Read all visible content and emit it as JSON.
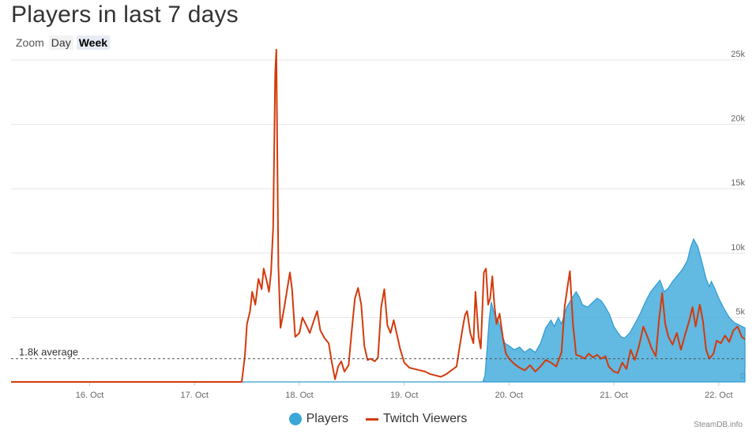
{
  "chart_data": {
    "type": "area",
    "title": "Players in last 7 days",
    "zoom": {
      "label": "Zoom",
      "options": [
        "Day",
        "Week"
      ],
      "selected": "Week"
    },
    "x_ticks": [
      "16. Oct",
      "17. Oct",
      "18. Oct",
      "19. Oct",
      "20. Oct",
      "21. Oct",
      "22. Oct"
    ],
    "xlim_days": [
      15.25,
      22.25
    ],
    "y_ticks": [
      "0",
      "5k",
      "10k",
      "15k",
      "20k",
      "25k"
    ],
    "ylim": [
      0,
      25000
    ],
    "average": {
      "value": 1800,
      "label": "1.8k average"
    },
    "grid": true,
    "legend_position": "bottom-center",
    "series": [
      {
        "name": "Players",
        "kind": "area",
        "color": "#3ba7d9",
        "points": [
          [
            15.25,
            0
          ],
          [
            19.75,
            0
          ],
          [
            19.77,
            500
          ],
          [
            19.79,
            2500
          ],
          [
            19.81,
            4800
          ],
          [
            19.83,
            6200
          ],
          [
            19.86,
            5300
          ],
          [
            19.9,
            4700
          ],
          [
            19.93,
            3800
          ],
          [
            19.96,
            3000
          ],
          [
            20.0,
            2800
          ],
          [
            20.05,
            2500
          ],
          [
            20.1,
            2700
          ],
          [
            20.15,
            2300
          ],
          [
            20.2,
            2600
          ],
          [
            20.25,
            2300
          ],
          [
            20.3,
            3000
          ],
          [
            20.35,
            4200
          ],
          [
            20.4,
            4800
          ],
          [
            20.43,
            4300
          ],
          [
            20.47,
            5000
          ],
          [
            20.5,
            4500
          ],
          [
            20.55,
            5800
          ],
          [
            20.6,
            6500
          ],
          [
            20.64,
            7000
          ],
          [
            20.67,
            6600
          ],
          [
            20.7,
            6000
          ],
          [
            20.75,
            5800
          ],
          [
            20.8,
            6200
          ],
          [
            20.84,
            6500
          ],
          [
            20.88,
            6300
          ],
          [
            20.92,
            5800
          ],
          [
            20.96,
            5200
          ],
          [
            21.0,
            4300
          ],
          [
            21.04,
            3800
          ],
          [
            21.07,
            3500
          ],
          [
            21.1,
            3400
          ],
          [
            21.15,
            3800
          ],
          [
            21.2,
            4500
          ],
          [
            21.25,
            5300
          ],
          [
            21.3,
            6200
          ],
          [
            21.35,
            7000
          ],
          [
            21.4,
            7500
          ],
          [
            21.44,
            7900
          ],
          [
            21.48,
            7000
          ],
          [
            21.52,
            7300
          ],
          [
            21.56,
            7800
          ],
          [
            21.6,
            8200
          ],
          [
            21.65,
            8700
          ],
          [
            21.7,
            9400
          ],
          [
            21.73,
            10400
          ],
          [
            21.76,
            11100
          ],
          [
            21.8,
            10500
          ],
          [
            21.84,
            9300
          ],
          [
            21.88,
            8000
          ],
          [
            21.91,
            7400
          ],
          [
            21.93,
            7800
          ],
          [
            21.96,
            7300
          ],
          [
            22.0,
            6500
          ],
          [
            22.05,
            5700
          ],
          [
            22.1,
            5000
          ],
          [
            22.15,
            4600
          ],
          [
            22.2,
            4400
          ],
          [
            22.25,
            4200
          ]
        ]
      },
      {
        "name": "Twitch Viewers",
        "kind": "line",
        "color": "#d33a0c",
        "points": [
          [
            15.25,
            0
          ],
          [
            17.45,
            0
          ],
          [
            17.48,
            2000
          ],
          [
            17.5,
            4500
          ],
          [
            17.53,
            5500
          ],
          [
            17.55,
            7000
          ],
          [
            17.58,
            6000
          ],
          [
            17.61,
            8000
          ],
          [
            17.64,
            7200
          ],
          [
            17.66,
            8800
          ],
          [
            17.69,
            7800
          ],
          [
            17.71,
            7000
          ],
          [
            17.73,
            8500
          ],
          [
            17.75,
            12000
          ],
          [
            17.77,
            24000
          ],
          [
            17.78,
            25800
          ],
          [
            17.8,
            9000
          ],
          [
            17.82,
            4200
          ],
          [
            17.85,
            5500
          ],
          [
            17.88,
            7000
          ],
          [
            17.91,
            8500
          ],
          [
            17.93,
            7200
          ],
          [
            17.96,
            3500
          ],
          [
            18.0,
            3800
          ],
          [
            18.03,
            5000
          ],
          [
            18.06,
            4500
          ],
          [
            18.1,
            3800
          ],
          [
            18.14,
            4800
          ],
          [
            18.17,
            5500
          ],
          [
            18.2,
            4000
          ],
          [
            18.24,
            3400
          ],
          [
            18.28,
            3000
          ],
          [
            18.31,
            1500
          ],
          [
            18.34,
            200
          ],
          [
            18.37,
            1200
          ],
          [
            18.4,
            1600
          ],
          [
            18.43,
            800
          ],
          [
            18.47,
            1300
          ],
          [
            18.5,
            4000
          ],
          [
            18.53,
            6500
          ],
          [
            18.56,
            7300
          ],
          [
            18.59,
            6000
          ],
          [
            18.62,
            2800
          ],
          [
            18.65,
            1700
          ],
          [
            18.68,
            1800
          ],
          [
            18.72,
            1600
          ],
          [
            18.75,
            1900
          ],
          [
            18.78,
            5800
          ],
          [
            18.81,
            7200
          ],
          [
            18.84,
            4400
          ],
          [
            18.87,
            3800
          ],
          [
            18.9,
            4800
          ],
          [
            18.93,
            3700
          ],
          [
            18.96,
            2600
          ],
          [
            19.0,
            1500
          ],
          [
            19.05,
            1100
          ],
          [
            19.1,
            1000
          ],
          [
            19.15,
            900
          ],
          [
            19.2,
            800
          ],
          [
            19.25,
            600
          ],
          [
            19.3,
            500
          ],
          [
            19.35,
            400
          ],
          [
            19.4,
            600
          ],
          [
            19.45,
            900
          ],
          [
            19.5,
            1200
          ],
          [
            19.53,
            2800
          ],
          [
            19.56,
            4300
          ],
          [
            19.58,
            5200
          ],
          [
            19.6,
            5500
          ],
          [
            19.63,
            3800
          ],
          [
            19.66,
            3000
          ],
          [
            19.68,
            7000
          ],
          [
            19.71,
            3500
          ],
          [
            19.73,
            2600
          ],
          [
            19.76,
            8500
          ],
          [
            19.78,
            8800
          ],
          [
            19.8,
            6000
          ],
          [
            19.82,
            6500
          ],
          [
            19.84,
            8200
          ],
          [
            19.86,
            6000
          ],
          [
            19.88,
            4500
          ],
          [
            19.91,
            5300
          ],
          [
            19.94,
            3500
          ],
          [
            19.97,
            2200
          ],
          [
            20.0,
            1800
          ],
          [
            20.05,
            1400
          ],
          [
            20.1,
            1100
          ],
          [
            20.15,
            900
          ],
          [
            20.2,
            1300
          ],
          [
            20.25,
            800
          ],
          [
            20.3,
            1200
          ],
          [
            20.35,
            1700
          ],
          [
            20.4,
            1500
          ],
          [
            20.45,
            1200
          ],
          [
            20.5,
            2300
          ],
          [
            20.53,
            5800
          ],
          [
            20.56,
            7500
          ],
          [
            20.58,
            8600
          ],
          [
            20.61,
            4500
          ],
          [
            20.64,
            2100
          ],
          [
            20.68,
            2000
          ],
          [
            20.72,
            1800
          ],
          [
            20.76,
            2200
          ],
          [
            20.8,
            1900
          ],
          [
            20.84,
            2100
          ],
          [
            20.88,
            1800
          ],
          [
            20.92,
            2000
          ],
          [
            20.95,
            1200
          ],
          [
            21.0,
            800
          ],
          [
            21.04,
            700
          ],
          [
            21.08,
            1500
          ],
          [
            21.12,
            1000
          ],
          [
            21.16,
            2500
          ],
          [
            21.2,
            1700
          ],
          [
            21.24,
            2800
          ],
          [
            21.28,
            4300
          ],
          [
            21.32,
            3500
          ],
          [
            21.36,
            2600
          ],
          [
            21.4,
            2000
          ],
          [
            21.43,
            4800
          ],
          [
            21.46,
            6900
          ],
          [
            21.49,
            4500
          ],
          [
            21.52,
            3500
          ],
          [
            21.56,
            2900
          ],
          [
            21.6,
            3800
          ],
          [
            21.64,
            2500
          ],
          [
            21.68,
            3700
          ],
          [
            21.72,
            4800
          ],
          [
            21.75,
            5800
          ],
          [
            21.78,
            4300
          ],
          [
            21.82,
            6000
          ],
          [
            21.85,
            4700
          ],
          [
            21.88,
            2500
          ],
          [
            21.91,
            1800
          ],
          [
            21.95,
            2200
          ],
          [
            21.98,
            3200
          ],
          [
            22.02,
            3000
          ],
          [
            22.06,
            3600
          ],
          [
            22.1,
            3100
          ],
          [
            22.14,
            4000
          ],
          [
            22.18,
            4300
          ],
          [
            22.22,
            3500
          ],
          [
            22.25,
            3300
          ]
        ]
      }
    ]
  },
  "credit": "SteamDB.info"
}
